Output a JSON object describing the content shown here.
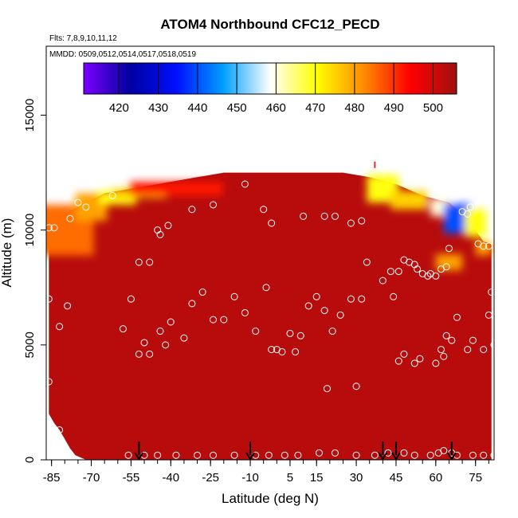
{
  "chart_data": {
    "type": "heatmap",
    "title": "ATOM4 Northbound CFC12_PECD",
    "flights_label": "Flts: 7,8,9,10,11,12",
    "dates_label": "MMDD: 0509,0512,0514,0517,0518,0519",
    "xlabel": "Latitude (deg N)",
    "ylabel": "Altitude (m)",
    "xlim": [
      -87,
      82
    ],
    "ylim": [
      0,
      18000
    ],
    "x_ticks": [
      -85,
      -70,
      -55,
      -40,
      -25,
      -10,
      5,
      15,
      30,
      45,
      60,
      75
    ],
    "y_ticks": [
      0,
      5000,
      10000,
      15000
    ],
    "colorbar": {
      "ticks": [
        420,
        430,
        440,
        450,
        460,
        470,
        480,
        490,
        500
      ],
      "range": [
        411,
        506
      ],
      "colors": [
        "#7b00ff",
        "#0000a0",
        "#0010ff",
        "#00a0ff",
        "#ffffff",
        "#ffff00",
        "#ff8c00",
        "#ff0000",
        "#a01010"
      ]
    },
    "background_value": 503,
    "top_profile": [
      [
        -86,
        10500
      ],
      [
        -80,
        10700
      ],
      [
        -75,
        11000
      ],
      [
        -70,
        11300
      ],
      [
        -65,
        11600
      ],
      [
        -55,
        11800
      ],
      [
        -45,
        12000
      ],
      [
        -30,
        12300
      ],
      [
        -20,
        12500
      ],
      [
        5,
        12500
      ],
      [
        25,
        12500
      ],
      [
        35,
        12300
      ],
      [
        45,
        12000
      ],
      [
        55,
        11500
      ],
      [
        65,
        11200
      ],
      [
        72,
        10500
      ],
      [
        78,
        9500
      ],
      [
        81,
        9400
      ]
    ],
    "bottom_profile": [
      [
        -86,
        2000
      ],
      [
        -84,
        1600
      ],
      [
        -82,
        1300
      ],
      [
        -80,
        900
      ],
      [
        -78,
        500
      ],
      [
        -76,
        200
      ],
      [
        -72,
        0
      ],
      [
        81,
        0
      ]
    ],
    "features": [
      {
        "x": -83,
        "y": 10000,
        "width": 28,
        "height": 2200,
        "value": 485
      },
      {
        "x": -70,
        "y": 11000,
        "width": 12,
        "height": 1200,
        "value": 480
      },
      {
        "x": -60,
        "y": 11400,
        "width": 14,
        "height": 600,
        "value": 470
      },
      {
        "x": -52,
        "y": 11600,
        "width": 20,
        "height": 400,
        "value": 475
      },
      {
        "x": -38,
        "y": 11800,
        "width": 35,
        "height": 600,
        "value": 492
      },
      {
        "x": 40,
        "y": 11800,
        "width": 12,
        "height": 1200,
        "value": 470
      },
      {
        "x": 50,
        "y": 11300,
        "width": 14,
        "height": 800,
        "value": 475
      },
      {
        "x": 62,
        "y": 11000,
        "width": 8,
        "height": 800,
        "value": 460
      },
      {
        "x": 68,
        "y": 10500,
        "width": 10,
        "height": 1300,
        "value": 440
      },
      {
        "x": 75,
        "y": 10300,
        "width": 8,
        "height": 1200,
        "value": 470
      },
      {
        "x": 65,
        "y": 8600,
        "width": 10,
        "height": 700,
        "value": 480
      },
      {
        "x": 78,
        "y": 9200,
        "width": 6,
        "height": 600,
        "value": 480
      }
    ],
    "obs_points": [
      [
        -86,
        10100
      ],
      [
        -84,
        10100
      ],
      [
        -78,
        10500
      ],
      [
        -75,
        11200
      ],
      [
        -72,
        11000
      ],
      [
        -62,
        11500
      ],
      [
        -52,
        8600
      ],
      [
        -48,
        8600
      ],
      [
        -45,
        10000
      ],
      [
        -44,
        9800
      ],
      [
        -41,
        10200
      ],
      [
        -32,
        10900
      ],
      [
        -24,
        11100
      ],
      [
        -12,
        12000
      ],
      [
        -5,
        10900
      ],
      [
        -2,
        10300
      ],
      [
        10,
        10600
      ],
      [
        18,
        10600
      ],
      [
        22,
        10600
      ],
      [
        28,
        10300
      ],
      [
        32,
        10400
      ],
      [
        34,
        8600
      ],
      [
        40,
        7800
      ],
      [
        43,
        8200
      ],
      [
        46,
        8200
      ],
      [
        48,
        8700
      ],
      [
        50,
        8600
      ],
      [
        52,
        8500
      ],
      [
        53,
        8300
      ],
      [
        55,
        8100
      ],
      [
        57,
        8000
      ],
      [
        58,
        8100
      ],
      [
        60,
        8000
      ],
      [
        62,
        8300
      ],
      [
        64,
        8400
      ],
      [
        65,
        9200
      ],
      [
        70,
        10800
      ],
      [
        72,
        10700
      ],
      [
        73,
        11000
      ],
      [
        76,
        9400
      ],
      [
        78,
        9300
      ],
      [
        80,
        9300
      ],
      [
        -86,
        7000
      ],
      [
        -82,
        5800
      ],
      [
        -79,
        6700
      ],
      [
        -58,
        5700
      ],
      [
        -55,
        7000
      ],
      [
        -52,
        4600
      ],
      [
        -50,
        5100
      ],
      [
        -48,
        4600
      ],
      [
        -44,
        5600
      ],
      [
        -40,
        6000
      ],
      [
        -42,
        5000
      ],
      [
        -35,
        5300
      ],
      [
        -32,
        6800
      ],
      [
        -28,
        7300
      ],
      [
        -24,
        6100
      ],
      [
        -20,
        6100
      ],
      [
        -16,
        7100
      ],
      [
        -12,
        6400
      ],
      [
        -8,
        5600
      ],
      [
        -4,
        7500
      ],
      [
        -2,
        4800
      ],
      [
        0,
        4800
      ],
      [
        2,
        4700
      ],
      [
        5,
        5500
      ],
      [
        7,
        4700
      ],
      [
        9,
        5400
      ],
      [
        12,
        6700
      ],
      [
        15,
        7100
      ],
      [
        18,
        6500
      ],
      [
        21,
        5600
      ],
      [
        24,
        6300
      ],
      [
        28,
        7000
      ],
      [
        30,
        3200
      ],
      [
        19,
        3100
      ],
      [
        32,
        7000
      ],
      [
        44,
        7100
      ],
      [
        46,
        4300
      ],
      [
        48,
        4600
      ],
      [
        52,
        4200
      ],
      [
        54,
        4400
      ],
      [
        60,
        4200
      ],
      [
        62,
        4800
      ],
      [
        63,
        4500
      ],
      [
        64,
        5400
      ],
      [
        66,
        5200
      ],
      [
        68,
        6200
      ],
      [
        72,
        4800
      ],
      [
        74,
        5200
      ],
      [
        78,
        4800
      ],
      [
        80,
        6300
      ],
      [
        81,
        7300
      ],
      [
        82,
        5000
      ],
      [
        -82,
        1300
      ],
      [
        -86,
        3400
      ],
      [
        -56,
        200
      ],
      [
        -50,
        200
      ],
      [
        -45,
        200
      ],
      [
        -38,
        200
      ],
      [
        -30,
        200
      ],
      [
        -24,
        200
      ],
      [
        -16,
        200
      ],
      [
        -8,
        200
      ],
      [
        -3,
        200
      ],
      [
        3,
        200
      ],
      [
        8,
        200
      ],
      [
        16,
        300
      ],
      [
        22,
        300
      ],
      [
        30,
        200
      ],
      [
        37,
        200
      ],
      [
        42,
        300
      ],
      [
        48,
        300
      ],
      [
        52,
        200
      ],
      [
        58,
        200
      ],
      [
        61,
        300
      ],
      [
        63,
        400
      ],
      [
        66,
        300
      ],
      [
        68,
        200
      ],
      [
        74,
        200
      ],
      [
        78,
        200
      ],
      [
        82,
        200
      ]
    ],
    "arrows_x": [
      -52,
      -10,
      40,
      45,
      66
    ],
    "marker_x": 37,
    "marker_y": 12700
  }
}
